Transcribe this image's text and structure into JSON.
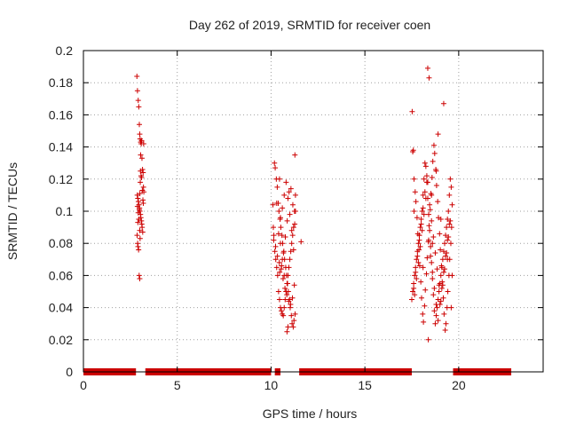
{
  "chart_data": {
    "type": "scatter",
    "title": "Day 262 of 2019, SRMTID for receiver coen",
    "xlabel": "GPS time / hours",
    "ylabel": "SRMTID / TECUs",
    "xlim": [
      0,
      24.5
    ],
    "ylim": [
      0,
      0.2
    ],
    "xticks": [
      0,
      5,
      10,
      15,
      20
    ],
    "xtick_labels": [
      "0",
      "5",
      "10",
      "15",
      "20"
    ],
    "yticks": [
      0,
      0.02,
      0.04,
      0.06,
      0.08,
      0.1,
      0.12,
      0.14,
      0.16,
      0.18,
      0.2
    ],
    "ytick_labels": [
      "0",
      "0.02",
      "0.04",
      "0.06",
      "0.08",
      "0.1",
      "0.12",
      "0.14",
      "0.16",
      "0.18",
      "0.2"
    ],
    "grid": true,
    "marker": "+",
    "color": "#cc0000",
    "zero_bands": [
      {
        "x0": 0.0,
        "x1": 2.8
      },
      {
        "x0": 3.3,
        "x1": 10.0
      },
      {
        "x0": 10.2,
        "x1": 10.5
      },
      {
        "x0": 11.5,
        "x1": 17.5
      },
      {
        "x0": 19.7,
        "x1": 22.8
      }
    ],
    "series": [
      {
        "name": "SRMTID",
        "x": [
          2.85,
          2.88,
          2.92,
          2.95,
          2.98,
          3.0,
          3.02,
          3.05,
          3.08,
          3.1,
          3.12,
          3.15,
          3.18,
          3.2,
          3.22,
          2.87,
          2.9,
          2.93,
          2.96,
          2.99,
          3.01,
          3.04,
          3.06,
          3.09,
          3.11,
          3.13,
          3.16,
          2.86,
          2.89,
          2.91,
          2.94,
          2.97,
          3.0,
          3.03,
          3.07,
          3.14,
          3.17,
          3.19,
          2.92,
          2.95,
          2.98,
          3.01,
          3.04,
          3.05,
          3.1,
          3.0,
          3.02,
          2.9,
          2.88,
          3.21,
          10.1,
          10.12,
          10.15,
          10.2,
          10.25,
          10.3,
          10.35,
          10.4,
          10.45,
          10.5,
          10.55,
          10.6,
          10.65,
          10.7,
          10.75,
          10.8,
          10.85,
          10.9,
          10.95,
          11.0,
          11.05,
          11.1,
          11.15,
          11.2,
          11.25,
          11.3,
          10.18,
          10.22,
          10.28,
          10.33,
          10.38,
          10.42,
          10.48,
          10.52,
          10.58,
          10.62,
          10.68,
          10.72,
          10.78,
          10.82,
          10.88,
          10.92,
          10.98,
          11.02,
          11.08,
          11.12,
          11.18,
          11.22,
          11.28,
          10.14,
          10.24,
          10.34,
          10.44,
          10.54,
          10.64,
          10.74,
          10.84,
          10.94,
          11.04,
          11.14,
          11.24,
          10.4,
          10.5,
          10.6,
          10.7,
          10.8,
          10.9,
          11.0,
          11.1,
          11.2,
          10.46,
          10.56,
          10.66,
          10.76,
          10.86,
          10.96,
          11.06,
          11.16,
          11.26,
          11.3,
          11.6,
          11.27,
          10.9,
          10.85,
          10.8,
          10.7,
          10.6,
          10.5,
          10.3,
          10.45,
          17.5,
          17.55,
          17.6,
          17.65,
          17.7,
          17.75,
          17.8,
          17.85,
          17.9,
          17.95,
          18.0,
          18.05,
          18.1,
          18.15,
          18.2,
          18.25,
          18.3,
          18.35,
          18.4,
          18.45,
          18.5,
          18.55,
          18.6,
          18.65,
          18.7,
          18.75,
          18.8,
          18.85,
          18.9,
          18.95,
          19.0,
          19.05,
          19.1,
          19.15,
          19.2,
          19.25,
          19.3,
          19.35,
          19.4,
          19.45,
          19.5,
          19.55,
          19.6,
          19.65,
          17.52,
          17.58,
          17.62,
          17.68,
          17.72,
          17.78,
          17.82,
          17.88,
          17.92,
          17.98,
          18.02,
          18.08,
          18.12,
          18.18,
          18.22,
          18.28,
          18.32,
          18.38,
          18.42,
          18.48,
          18.52,
          18.58,
          18.62,
          18.68,
          18.72,
          18.78,
          18.82,
          18.88,
          18.92,
          18.98,
          19.02,
          19.08,
          19.12,
          19.18,
          19.22,
          19.28,
          19.32,
          19.38,
          19.42,
          19.48,
          19.52,
          19.58,
          19.62,
          17.6,
          17.7,
          17.8,
          17.9,
          18.0,
          18.1,
          18.2,
          18.3,
          18.4,
          18.5,
          18.6,
          18.7,
          18.8,
          18.9,
          19.0,
          19.1,
          19.2,
          19.3,
          19.4,
          19.5,
          17.65,
          17.75,
          17.85,
          17.95,
          18.05,
          18.15,
          18.25,
          18.35,
          18.45,
          18.55,
          18.65,
          18.75,
          18.85,
          18.95,
          19.05,
          19.15,
          19.25,
          19.35,
          19.45,
          19.55,
          19.65,
          17.55,
          17.62,
          18.35,
          18.42,
          18.9,
          19.2,
          18.38,
          18.6,
          19.4,
          18.1,
          17.9,
          18.8,
          19.05,
          19.6,
          18.55
        ],
        "y": [
          0.184,
          0.175,
          0.169,
          0.165,
          0.154,
          0.148,
          0.145,
          0.143,
          0.142,
          0.144,
          0.133,
          0.126,
          0.124,
          0.115,
          0.112,
          0.11,
          0.108,
          0.106,
          0.104,
          0.102,
          0.1,
          0.098,
          0.096,
          0.094,
          0.092,
          0.09,
          0.087,
          0.085,
          0.08,
          0.078,
          0.076,
          0.06,
          0.058,
          0.118,
          0.122,
          0.113,
          0.107,
          0.105,
          0.099,
          0.095,
          0.101,
          0.111,
          0.125,
          0.135,
          0.121,
          0.088,
          0.083,
          0.093,
          0.103,
          0.142,
          0.104,
          0.09,
          0.085,
          0.075,
          0.07,
          0.065,
          0.06,
          0.05,
          0.045,
          0.04,
          0.038,
          0.036,
          0.035,
          0.04,
          0.045,
          0.05,
          0.055,
          0.06,
          0.065,
          0.07,
          0.075,
          0.08,
          0.085,
          0.09,
          0.1,
          0.11,
          0.13,
          0.127,
          0.12,
          0.115,
          0.105,
          0.1,
          0.095,
          0.09,
          0.085,
          0.08,
          0.075,
          0.07,
          0.065,
          0.06,
          0.055,
          0.05,
          0.045,
          0.04,
          0.035,
          0.03,
          0.028,
          0.032,
          0.036,
          0.082,
          0.078,
          0.072,
          0.068,
          0.064,
          0.058,
          0.052,
          0.048,
          0.044,
          0.042,
          0.046,
          0.054,
          0.086,
          0.096,
          0.102,
          0.11,
          0.118,
          0.108,
          0.098,
          0.088,
          0.076,
          0.062,
          0.066,
          0.074,
          0.084,
          0.094,
          0.112,
          0.114,
          0.104,
          0.092,
          0.1,
          0.081,
          0.135,
          0.028,
          0.025,
          0.05,
          0.06,
          0.07,
          0.08,
          0.105,
          0.12,
          0.045,
          0.05,
          0.055,
          0.06,
          0.065,
          0.07,
          0.075,
          0.08,
          0.085,
          0.09,
          0.095,
          0.1,
          0.11,
          0.12,
          0.13,
          0.128,
          0.118,
          0.108,
          0.098,
          0.088,
          0.078,
          0.068,
          0.058,
          0.048,
          0.038,
          0.03,
          0.035,
          0.04,
          0.045,
          0.05,
          0.055,
          0.06,
          0.065,
          0.07,
          0.075,
          0.08,
          0.085,
          0.09,
          0.095,
          0.1,
          0.11,
          0.12,
          0.115,
          0.06,
          0.162,
          0.138,
          0.12,
          0.112,
          0.106,
          0.096,
          0.086,
          0.076,
          0.066,
          0.056,
          0.046,
          0.036,
          0.031,
          0.041,
          0.051,
          0.061,
          0.071,
          0.081,
          0.091,
          0.101,
          0.111,
          0.121,
          0.131,
          0.141,
          0.136,
          0.126,
          0.116,
          0.106,
          0.096,
          0.086,
          0.076,
          0.066,
          0.056,
          0.046,
          0.036,
          0.026,
          0.03,
          0.04,
          0.05,
          0.06,
          0.07,
          0.08,
          0.09,
          0.052,
          0.062,
          0.072,
          0.082,
          0.092,
          0.102,
          0.112,
          0.122,
          0.082,
          0.072,
          0.062,
          0.052,
          0.042,
          0.032,
          0.042,
          0.052,
          0.062,
          0.072,
          0.082,
          0.092,
          0.048,
          0.058,
          0.068,
          0.078,
          0.088,
          0.098,
          0.108,
          0.118,
          0.104,
          0.094,
          0.084,
          0.074,
          0.064,
          0.054,
          0.044,
          0.054,
          0.064,
          0.074,
          0.084,
          0.094,
          0.104,
          0.137,
          0.1,
          0.189,
          0.183,
          0.148,
          0.167,
          0.02,
          0.08,
          0.07,
          0.065,
          0.085,
          0.125,
          0.095,
          0.04,
          0.11
        ]
      }
    ]
  }
}
